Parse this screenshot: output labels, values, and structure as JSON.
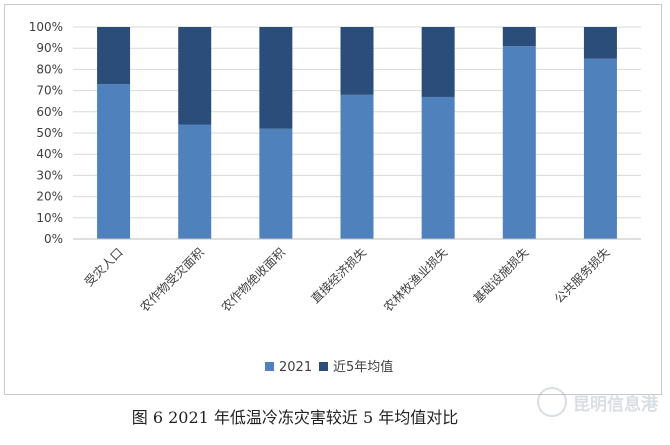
{
  "chart_data": {
    "type": "bar",
    "stacked": true,
    "percent": true,
    "categories": [
      "受灾人口",
      "农作物受灾面积",
      "农作物绝收面积",
      "直接经济损失",
      "农林牧渔业损失",
      "基础设施损失",
      "公共服务损失"
    ],
    "series": [
      {
        "name": "2021",
        "values": [
          73,
          54,
          52,
          68,
          67,
          91,
          85
        ],
        "color": "#4f81bd"
      },
      {
        "name": "近5年均值",
        "values": [
          27,
          46,
          48,
          32,
          33,
          9,
          15
        ],
        "color": "#2b4d79"
      }
    ],
    "y_ticks": [
      "0%",
      "10%",
      "20%",
      "30%",
      "40%",
      "50%",
      "60%",
      "70%",
      "80%",
      "90%",
      "100%"
    ],
    "ylim": [
      0,
      100
    ],
    "grid": true,
    "legend_position": "bottom"
  },
  "caption": "图 6 2021 年低温冷冻灾害较近 5 年均值对比",
  "watermark": "昆明信息港"
}
